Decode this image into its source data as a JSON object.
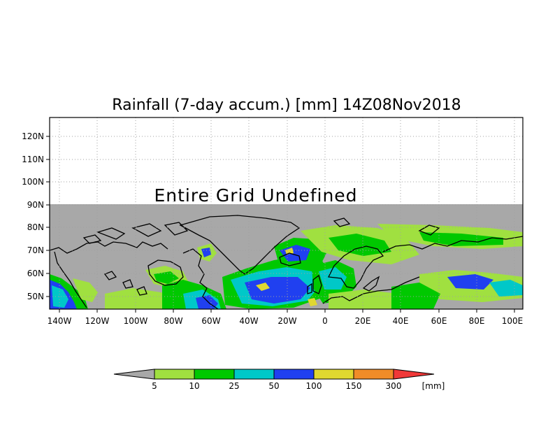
{
  "map": {
    "title": "Rainfall (7-day accum.) [mm] 14Z08Nov2018",
    "note": "Entire Grid Undefined",
    "lat_ticks": [
      "120N",
      "110N",
      "100N",
      "90N",
      "80N",
      "70N",
      "60N",
      "50N"
    ],
    "lon_ticks": [
      "140W",
      "120W",
      "100W",
      "80W",
      "60W",
      "40W",
      "20W",
      "0",
      "20E",
      "40E",
      "60E",
      "80E",
      "100E"
    ],
    "colors": {
      "undefined": "#a8a8a8",
      "coast": "#000000",
      "grid": "#a0a0a0"
    }
  },
  "legend": {
    "unit": "[mm]",
    "labels": [
      "5",
      "10",
      "25",
      "50",
      "100",
      "150",
      "300"
    ],
    "colors": [
      "#a8a8a8",
      "#a0e040",
      "#00c800",
      "#00c8c8",
      "#2040f0",
      "#e0d830",
      "#f08c28",
      "#f03838"
    ]
  }
}
